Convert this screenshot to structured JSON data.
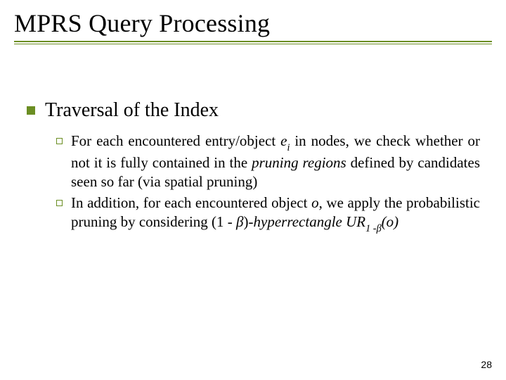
{
  "colors": {
    "title_rule": "#6b8e23",
    "bullet_lvl1": "#6b8e23",
    "bullet_lvl2_border": "#6b8e23",
    "text": "#000000",
    "background": "#ffffff"
  },
  "title": "MPRS Query Processing",
  "page_number": "28",
  "lvl1": {
    "text": "Traversal of the Index"
  },
  "lvl2": {
    "item1": {
      "pre": "For each encountered entry/object ",
      "var_e": "e",
      "sub_i": "i",
      "mid1": " in nodes, we check whether or not it is fully contained in the ",
      "pruning_regions": "pruning regions",
      "post1": " defined by candidates seen so far (via spatial pruning)"
    },
    "item2": {
      "pre": "In addition, for each encountered object ",
      "var_o": "o",
      "mid1": ", we apply the probabilistic pruning by considering (1 - ",
      "beta1": "β",
      "mid2": ")",
      "hyperrect": "-hyperrectangle ",
      "UR": "UR",
      "sub_1minus": "1 -",
      "sub_beta": "β",
      "open": "(",
      "var_o2": "o",
      "close": ")"
    }
  }
}
